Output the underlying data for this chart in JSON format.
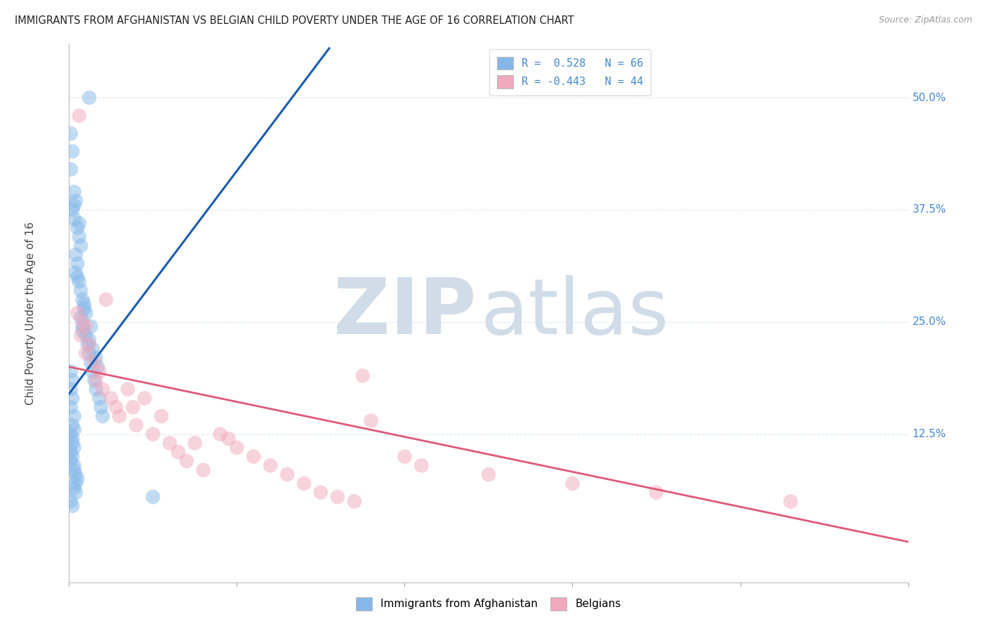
{
  "title": "IMMIGRANTS FROM AFGHANISTAN VS BELGIAN CHILD POVERTY UNDER THE AGE OF 16 CORRELATION CHART",
  "source": "Source: ZipAtlas.com",
  "ylabel": "Child Poverty Under the Age of 16",
  "ytick_labels": [
    "12.5%",
    "25.0%",
    "37.5%",
    "50.0%"
  ],
  "ytick_values": [
    0.125,
    0.25,
    0.375,
    0.5
  ],
  "xmin": 0.0,
  "xmax": 0.5,
  "ymin": -0.04,
  "ymax": 0.56,
  "legend_r_blue": "R =  0.528",
  "legend_n_blue": "N = 66",
  "legend_r_pink": "R = -0.443",
  "legend_n_pink": "N = 44",
  "blue_scatter_x": [
    0.001,
    0.002,
    0.001,
    0.003,
    0.004,
    0.002,
    0.003,
    0.003,
    0.005,
    0.006,
    0.006,
    0.007,
    0.004,
    0.005,
    0.004,
    0.006,
    0.007,
    0.008,
    0.009,
    0.007,
    0.005,
    0.008,
    0.01,
    0.009,
    0.011,
    0.012,
    0.01,
    0.013,
    0.008,
    0.014,
    0.012,
    0.015,
    0.016,
    0.014,
    0.013,
    0.018,
    0.017,
    0.019,
    0.02,
    0.016,
    0.001,
    0.002,
    0.001,
    0.002,
    0.001,
    0.003,
    0.002,
    0.003,
    0.001,
    0.002,
    0.002,
    0.003,
    0.001,
    0.002,
    0.001,
    0.003,
    0.003,
    0.004,
    0.005,
    0.004,
    0.003,
    0.004,
    0.05,
    0.001,
    0.002,
    0.012
  ],
  "blue_scatter_y": [
    0.46,
    0.44,
    0.42,
    0.395,
    0.385,
    0.375,
    0.365,
    0.38,
    0.355,
    0.345,
    0.36,
    0.335,
    0.325,
    0.315,
    0.305,
    0.295,
    0.285,
    0.275,
    0.265,
    0.255,
    0.3,
    0.245,
    0.235,
    0.27,
    0.225,
    0.215,
    0.26,
    0.205,
    0.24,
    0.195,
    0.23,
    0.185,
    0.175,
    0.22,
    0.245,
    0.165,
    0.2,
    0.155,
    0.145,
    0.21,
    0.195,
    0.185,
    0.175,
    0.165,
    0.155,
    0.145,
    0.135,
    0.13,
    0.125,
    0.12,
    0.115,
    0.11,
    0.105,
    0.1,
    0.095,
    0.09,
    0.085,
    0.08,
    0.075,
    0.07,
    0.065,
    0.06,
    0.055,
    0.05,
    0.045,
    0.5
  ],
  "pink_scatter_x": [
    0.006,
    0.005,
    0.008,
    0.01,
    0.007,
    0.012,
    0.01,
    0.015,
    0.018,
    0.016,
    0.02,
    0.025,
    0.022,
    0.028,
    0.03,
    0.035,
    0.04,
    0.038,
    0.045,
    0.05,
    0.055,
    0.06,
    0.065,
    0.07,
    0.075,
    0.08,
    0.09,
    0.095,
    0.1,
    0.11,
    0.12,
    0.13,
    0.14,
    0.15,
    0.16,
    0.17,
    0.175,
    0.18,
    0.2,
    0.21,
    0.25,
    0.3,
    0.35,
    0.43
  ],
  "pink_scatter_y": [
    0.48,
    0.26,
    0.25,
    0.245,
    0.235,
    0.225,
    0.215,
    0.205,
    0.195,
    0.185,
    0.175,
    0.165,
    0.275,
    0.155,
    0.145,
    0.175,
    0.135,
    0.155,
    0.165,
    0.125,
    0.145,
    0.115,
    0.105,
    0.095,
    0.115,
    0.085,
    0.125,
    0.12,
    0.11,
    0.1,
    0.09,
    0.08,
    0.07,
    0.06,
    0.055,
    0.05,
    0.19,
    0.14,
    0.1,
    0.09,
    0.08,
    0.07,
    0.06,
    0.05
  ],
  "blue_line_x": [
    0.0,
    0.155
  ],
  "blue_line_y": [
    0.17,
    0.555
  ],
  "pink_line_x": [
    0.0,
    0.5
  ],
  "pink_line_y": [
    0.2,
    0.005
  ],
  "watermark_zip": "ZIP",
  "watermark_atlas": "atlas",
  "watermark_color": "#d0dce8",
  "blue_color": "#85b8e8",
  "pink_color": "#f0a8bc",
  "blue_line_color": "#1a5cb0",
  "pink_line_color": "#e05878",
  "axis_label_color": "#4488cc",
  "grid_color": "#dce8f0",
  "background_color": "#ffffff",
  "legend_text_color": "#4488cc"
}
